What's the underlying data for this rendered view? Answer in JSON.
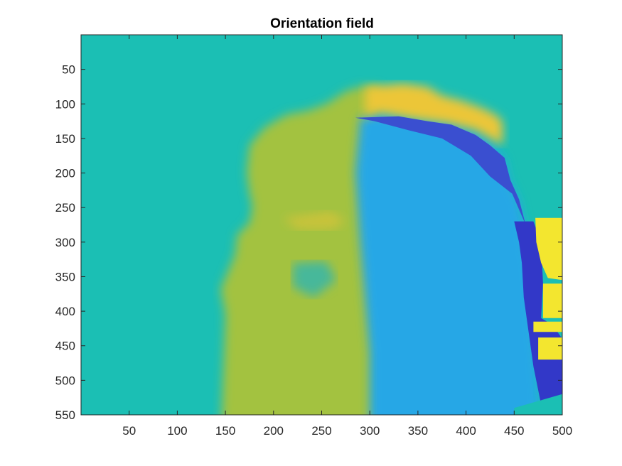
{
  "chart_data": {
    "type": "heatmap",
    "title": "Orientation field",
    "xlabel": "",
    "ylabel": "",
    "xlim": [
      0,
      500
    ],
    "ylim": [
      550,
      0
    ],
    "y_axis_direction": "reversed",
    "x_ticks": [
      50,
      100,
      150,
      200,
      250,
      300,
      350,
      400,
      450,
      500
    ],
    "y_ticks": [
      50,
      100,
      150,
      200,
      250,
      300,
      350,
      400,
      450,
      500,
      550
    ],
    "colormap": "parula",
    "background_value_color": "#1bbfb4",
    "grid": false,
    "legend": "none",
    "regions": [
      {
        "name": "",
        "color": "#a3c23f",
        "points": [
          [
            145,
            590
          ],
          [
            150,
            405
          ],
          [
            145,
            368
          ],
          [
            160,
            318
          ],
          [
            162,
            290
          ],
          [
            175,
            272
          ],
          [
            178,
            248
          ],
          [
            175,
            230
          ],
          [
            172,
            200
          ],
          [
            175,
            160
          ],
          [
            190,
            135
          ],
          [
            205,
            122
          ],
          [
            215,
            115
          ],
          [
            235,
            110
          ],
          [
            255,
            100
          ],
          [
            275,
            82
          ],
          [
            290,
            75
          ],
          [
            310,
            75
          ],
          [
            310,
            590
          ]
        ]
      },
      {
        "name": "",
        "color": "#27a7e6",
        "points": [
          [
            290,
            120
          ],
          [
            310,
            112
          ],
          [
            330,
            118
          ],
          [
            355,
            125
          ],
          [
            385,
            128
          ],
          [
            410,
            140
          ],
          [
            425,
            155
          ],
          [
            440,
            180
          ],
          [
            445,
            210
          ],
          [
            455,
            240
          ],
          [
            460,
            270
          ],
          [
            462,
            300
          ],
          [
            467,
            340
          ],
          [
            470,
            400
          ],
          [
            473,
            460
          ],
          [
            476,
            520
          ],
          [
            478,
            560
          ],
          [
            478,
            590
          ],
          [
            300,
            590
          ],
          [
            300,
            460
          ],
          [
            295,
            380
          ],
          [
            290,
            300
          ],
          [
            285,
            200
          ]
        ]
      },
      {
        "name": "",
        "color": "#ecc639",
        "points": [
          [
            295,
            75
          ],
          [
            335,
            70
          ],
          [
            360,
            75
          ],
          [
            375,
            88
          ],
          [
            395,
            95
          ],
          [
            415,
            105
          ],
          [
            430,
            115
          ],
          [
            438,
            125
          ],
          [
            438,
            160
          ],
          [
            410,
            138
          ],
          [
            380,
            128
          ],
          [
            350,
            123
          ],
          [
            325,
            117
          ],
          [
            305,
            112
          ],
          [
            295,
            120
          ]
        ]
      },
      {
        "name": "",
        "color": "#c8c33a",
        "points": [
          [
            210,
            265
          ],
          [
            260,
            255
          ],
          [
            275,
            270
          ],
          [
            262,
            282
          ],
          [
            225,
            282
          ]
        ]
      },
      {
        "name": "",
        "color": "#46b89a",
        "points": [
          [
            220,
            330
          ],
          [
            255,
            328
          ],
          [
            265,
            355
          ],
          [
            242,
            380
          ],
          [
            220,
            365
          ]
        ]
      },
      {
        "name": "",
        "color": "#3a4fd0",
        "points": [
          [
            285,
            120
          ],
          [
            330,
            118
          ],
          [
            360,
            125
          ],
          [
            385,
            130
          ],
          [
            410,
            145
          ],
          [
            425,
            160
          ],
          [
            440,
            178
          ],
          [
            446,
            210
          ],
          [
            455,
            238
          ],
          [
            462,
            275
          ],
          [
            448,
            230
          ],
          [
            425,
            205
          ],
          [
            405,
            175
          ],
          [
            375,
            150
          ],
          [
            340,
            138
          ],
          [
            305,
            125
          ]
        ]
      },
      {
        "name": "",
        "color": "#3238c8",
        "points": [
          [
            450,
            270
          ],
          [
            470,
            270
          ],
          [
            478,
            300
          ],
          [
            480,
            360
          ],
          [
            478,
            410
          ],
          [
            490,
            420
          ],
          [
            500,
            440
          ],
          [
            500,
            535
          ],
          [
            478,
            535
          ],
          [
            470,
            480
          ],
          [
            465,
            430
          ],
          [
            460,
            380
          ],
          [
            458,
            330
          ],
          [
            455,
            300
          ]
        ]
      },
      {
        "name": "",
        "color": "#f3e62f",
        "points": [
          [
            472,
            265
          ],
          [
            500,
            265
          ],
          [
            500,
            355
          ],
          [
            485,
            352
          ],
          [
            478,
            330
          ],
          [
            473,
            300
          ]
        ]
      },
      {
        "name": "",
        "color": "#f3e62f",
        "points": [
          [
            480,
            360
          ],
          [
            500,
            360
          ],
          [
            500,
            410
          ],
          [
            480,
            410
          ]
        ]
      },
      {
        "name": "",
        "color": "#f3e62f",
        "points": [
          [
            470,
            415
          ],
          [
            500,
            415
          ],
          [
            500,
            430
          ],
          [
            470,
            430
          ]
        ]
      },
      {
        "name": "",
        "color": "#f3e62f",
        "points": [
          [
            475,
            438
          ],
          [
            500,
            438
          ],
          [
            500,
            470
          ],
          [
            475,
            470
          ]
        ]
      },
      {
        "name": "",
        "color": "#1bbfb4",
        "points": [
          [
            450,
            540
          ],
          [
            500,
            520
          ],
          [
            500,
            590
          ],
          [
            450,
            590
          ]
        ]
      }
    ]
  }
}
